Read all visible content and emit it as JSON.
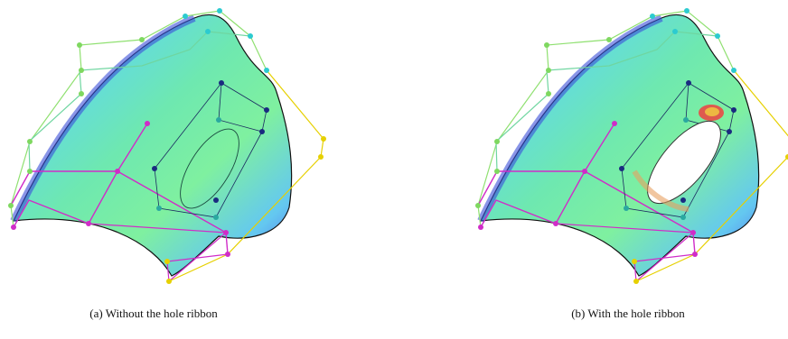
{
  "figure": {
    "panels": [
      {
        "caption": "(a) Without the hole ribbon"
      },
      {
        "caption": "(b) With the hole ribbon"
      }
    ]
  }
}
